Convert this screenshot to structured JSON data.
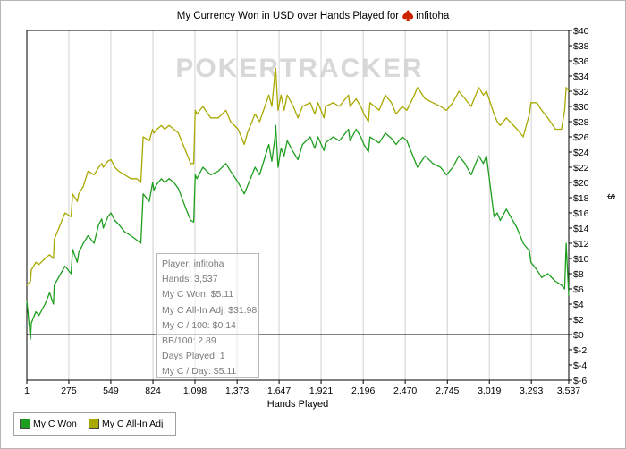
{
  "chart_data": {
    "type": "line",
    "title": "My Currency Won in USD over Hands Played for",
    "player_name": "infitoha",
    "watermark": "POKERTRACKER",
    "xlabel": "Hands Played",
    "ylabel": "$",
    "x_ticks": [
      "1",
      "275",
      "549",
      "824",
      "1,098",
      "1,373",
      "1,647",
      "1,921",
      "2,196",
      "2,470",
      "2,745",
      "3,019",
      "3,293",
      "3,537"
    ],
    "xlim": [
      1,
      3537
    ],
    "ylim": [
      -6,
      40
    ],
    "y_ticks": [
      "$40",
      "$38",
      "$36",
      "$34",
      "$32",
      "$30",
      "$28",
      "$26",
      "$24",
      "$22",
      "$20",
      "$18",
      "$16",
      "$14",
      "$12",
      "$10",
      "$8",
      "$6",
      "$4",
      "$2",
      "$0",
      "$-2",
      "$-4",
      "$-6"
    ],
    "grid": "vertical",
    "legend_position": "bottom-left",
    "series": [
      {
        "name": "My C Won",
        "color": "#1e9e1e",
        "x": [
          1,
          25,
          30,
          60,
          80,
          120,
          150,
          175,
          180,
          250,
          290,
          300,
          330,
          340,
          370,
          385,
          400,
          440,
          470,
          490,
          500,
          530,
          550,
          575,
          600,
          640,
          680,
          720,
          745,
          760,
          800,
          822,
          830,
          850,
          880,
          900,
          930,
          960,
          990,
          1040,
          1070,
          1090,
          1100,
          1110,
          1150,
          1200,
          1250,
          1300,
          1330,
          1380,
          1420,
          1440,
          1490,
          1520,
          1580,
          1600,
          1620,
          1625,
          1640,
          1660,
          1680,
          1700,
          1740,
          1770,
          1800,
          1850,
          1880,
          1900,
          1940,
          1950,
          2000,
          2040,
          2080,
          2100,
          2110,
          2150,
          2180,
          2200,
          2230,
          2240,
          2300,
          2340,
          2380,
          2410,
          2450,
          2480,
          2530,
          2550,
          2600,
          2650,
          2700,
          2740,
          2780,
          2820,
          2860,
          2900,
          2950,
          2980,
          3000,
          3050,
          3070,
          3090,
          3130,
          3200,
          3240,
          3280,
          3290,
          3330,
          3360,
          3400,
          3450,
          3490,
          3510,
          3520,
          3537
        ],
        "y": [
          4.5,
          -0.6,
          1.5,
          3.0,
          2.5,
          4.0,
          5.5,
          4.0,
          6.5,
          9.0,
          8.0,
          11.2,
          9.5,
          10.8,
          12.0,
          12.5,
          13.0,
          12.0,
          14.5,
          15.2,
          14.0,
          15.5,
          16.0,
          15.0,
          14.5,
          13.5,
          13.0,
          12.4,
          12.0,
          18.5,
          17.5,
          20.0,
          19.0,
          19.8,
          20.5,
          20.0,
          20.5,
          20.0,
          19.2,
          16.5,
          15.0,
          14.8,
          21.0,
          20.5,
          22.0,
          21.0,
          21.5,
          22.5,
          21.5,
          20.0,
          18.5,
          19.5,
          22.0,
          21.0,
          25.0,
          22.8,
          26.0,
          27.5,
          22.0,
          24.5,
          23.5,
          25.5,
          24.0,
          23.0,
          25.0,
          26.0,
          24.5,
          26.0,
          24.2,
          25.2,
          26.0,
          25.5,
          26.5,
          27.0,
          25.5,
          27.0,
          26.0,
          25.0,
          24.0,
          26.0,
          25.2,
          26.5,
          25.8,
          25.0,
          26.0,
          25.5,
          23.0,
          22.0,
          23.5,
          22.5,
          22.0,
          21.0,
          22.0,
          23.5,
          22.5,
          21.0,
          23.5,
          22.5,
          23.5,
          15.5,
          16.0,
          15.0,
          16.5,
          14.0,
          12.0,
          11.0,
          9.5,
          8.5,
          7.5,
          8.0,
          7.0,
          6.5,
          6.0,
          12.0,
          5.1
        ]
      },
      {
        "name": "My C All-In Adj",
        "color": "#a8a800",
        "x": [
          1,
          25,
          30,
          60,
          80,
          120,
          150,
          175,
          180,
          250,
          290,
          300,
          330,
          340,
          370,
          385,
          400,
          440,
          470,
          490,
          500,
          530,
          550,
          575,
          600,
          640,
          680,
          720,
          745,
          760,
          800,
          822,
          830,
          850,
          880,
          900,
          930,
          960,
          990,
          1040,
          1070,
          1090,
          1100,
          1110,
          1150,
          1200,
          1250,
          1300,
          1330,
          1380,
          1420,
          1440,
          1490,
          1520,
          1580,
          1600,
          1620,
          1625,
          1640,
          1660,
          1680,
          1700,
          1740,
          1770,
          1800,
          1850,
          1880,
          1900,
          1940,
          1950,
          2000,
          2040,
          2080,
          2100,
          2110,
          2150,
          2180,
          2200,
          2230,
          2240,
          2300,
          2340,
          2380,
          2410,
          2450,
          2480,
          2530,
          2550,
          2600,
          2650,
          2700,
          2740,
          2780,
          2820,
          2860,
          2900,
          2950,
          2980,
          3000,
          3050,
          3070,
          3090,
          3130,
          3200,
          3240,
          3280,
          3290,
          3330,
          3360,
          3400,
          3450,
          3490,
          3510,
          3520,
          3537
        ],
        "y": [
          6.5,
          7.0,
          8.5,
          9.5,
          9.2,
          10.0,
          10.5,
          10.0,
          12.5,
          16.0,
          15.5,
          18.5,
          17.5,
          18.5,
          19.5,
          20.5,
          21.5,
          21.0,
          22.0,
          22.5,
          22.0,
          22.8,
          23.0,
          22.0,
          21.5,
          21.0,
          20.5,
          20.5,
          20.0,
          26.0,
          25.5,
          27.0,
          26.5,
          27.0,
          27.5,
          27.0,
          27.5,
          27.0,
          26.5,
          24.0,
          22.5,
          22.5,
          29.5,
          29.0,
          30.0,
          28.5,
          28.5,
          29.5,
          28.0,
          27.0,
          25.0,
          26.5,
          29.0,
          28.0,
          31.5,
          30.0,
          34.5,
          35.0,
          29.5,
          31.5,
          29.5,
          31.5,
          30.0,
          28.5,
          30.0,
          30.5,
          29.0,
          30.5,
          28.5,
          30.0,
          30.5,
          30.0,
          31.0,
          31.5,
          30.0,
          31.0,
          30.0,
          29.0,
          28.0,
          30.5,
          29.5,
          31.5,
          30.5,
          29.0,
          30.0,
          29.5,
          31.5,
          32.5,
          31.0,
          30.5,
          30.0,
          29.5,
          30.5,
          32.0,
          31.0,
          30.0,
          32.5,
          31.5,
          32.0,
          29.0,
          28.0,
          27.5,
          28.5,
          27.0,
          26.0,
          29.0,
          30.5,
          30.5,
          29.5,
          28.5,
          27.0,
          27.0,
          29.5,
          32.5,
          32.0
        ]
      }
    ]
  },
  "tooltip": {
    "player": "Player: infitoha",
    "hands": "Hands: 3,537",
    "won": "My C Won: $5.11",
    "allin": "My C All-In Adj: $31.98",
    "per100": "My C / 100: $0.14",
    "bb100": "BB/100: 2.89",
    "days": "Days Played: 1",
    "perday": "My C / Day: $5.11"
  },
  "legend": {
    "items": [
      {
        "label": "My C Won",
        "color": "#1e9e1e"
      },
      {
        "label": "My C All-In Adj",
        "color": "#a8a800"
      }
    ]
  },
  "colors": {
    "zero_line": "#000000",
    "grid": "#d0d0d0",
    "watermark": "#d8d8d8",
    "spade_icon": "#cc2200"
  }
}
